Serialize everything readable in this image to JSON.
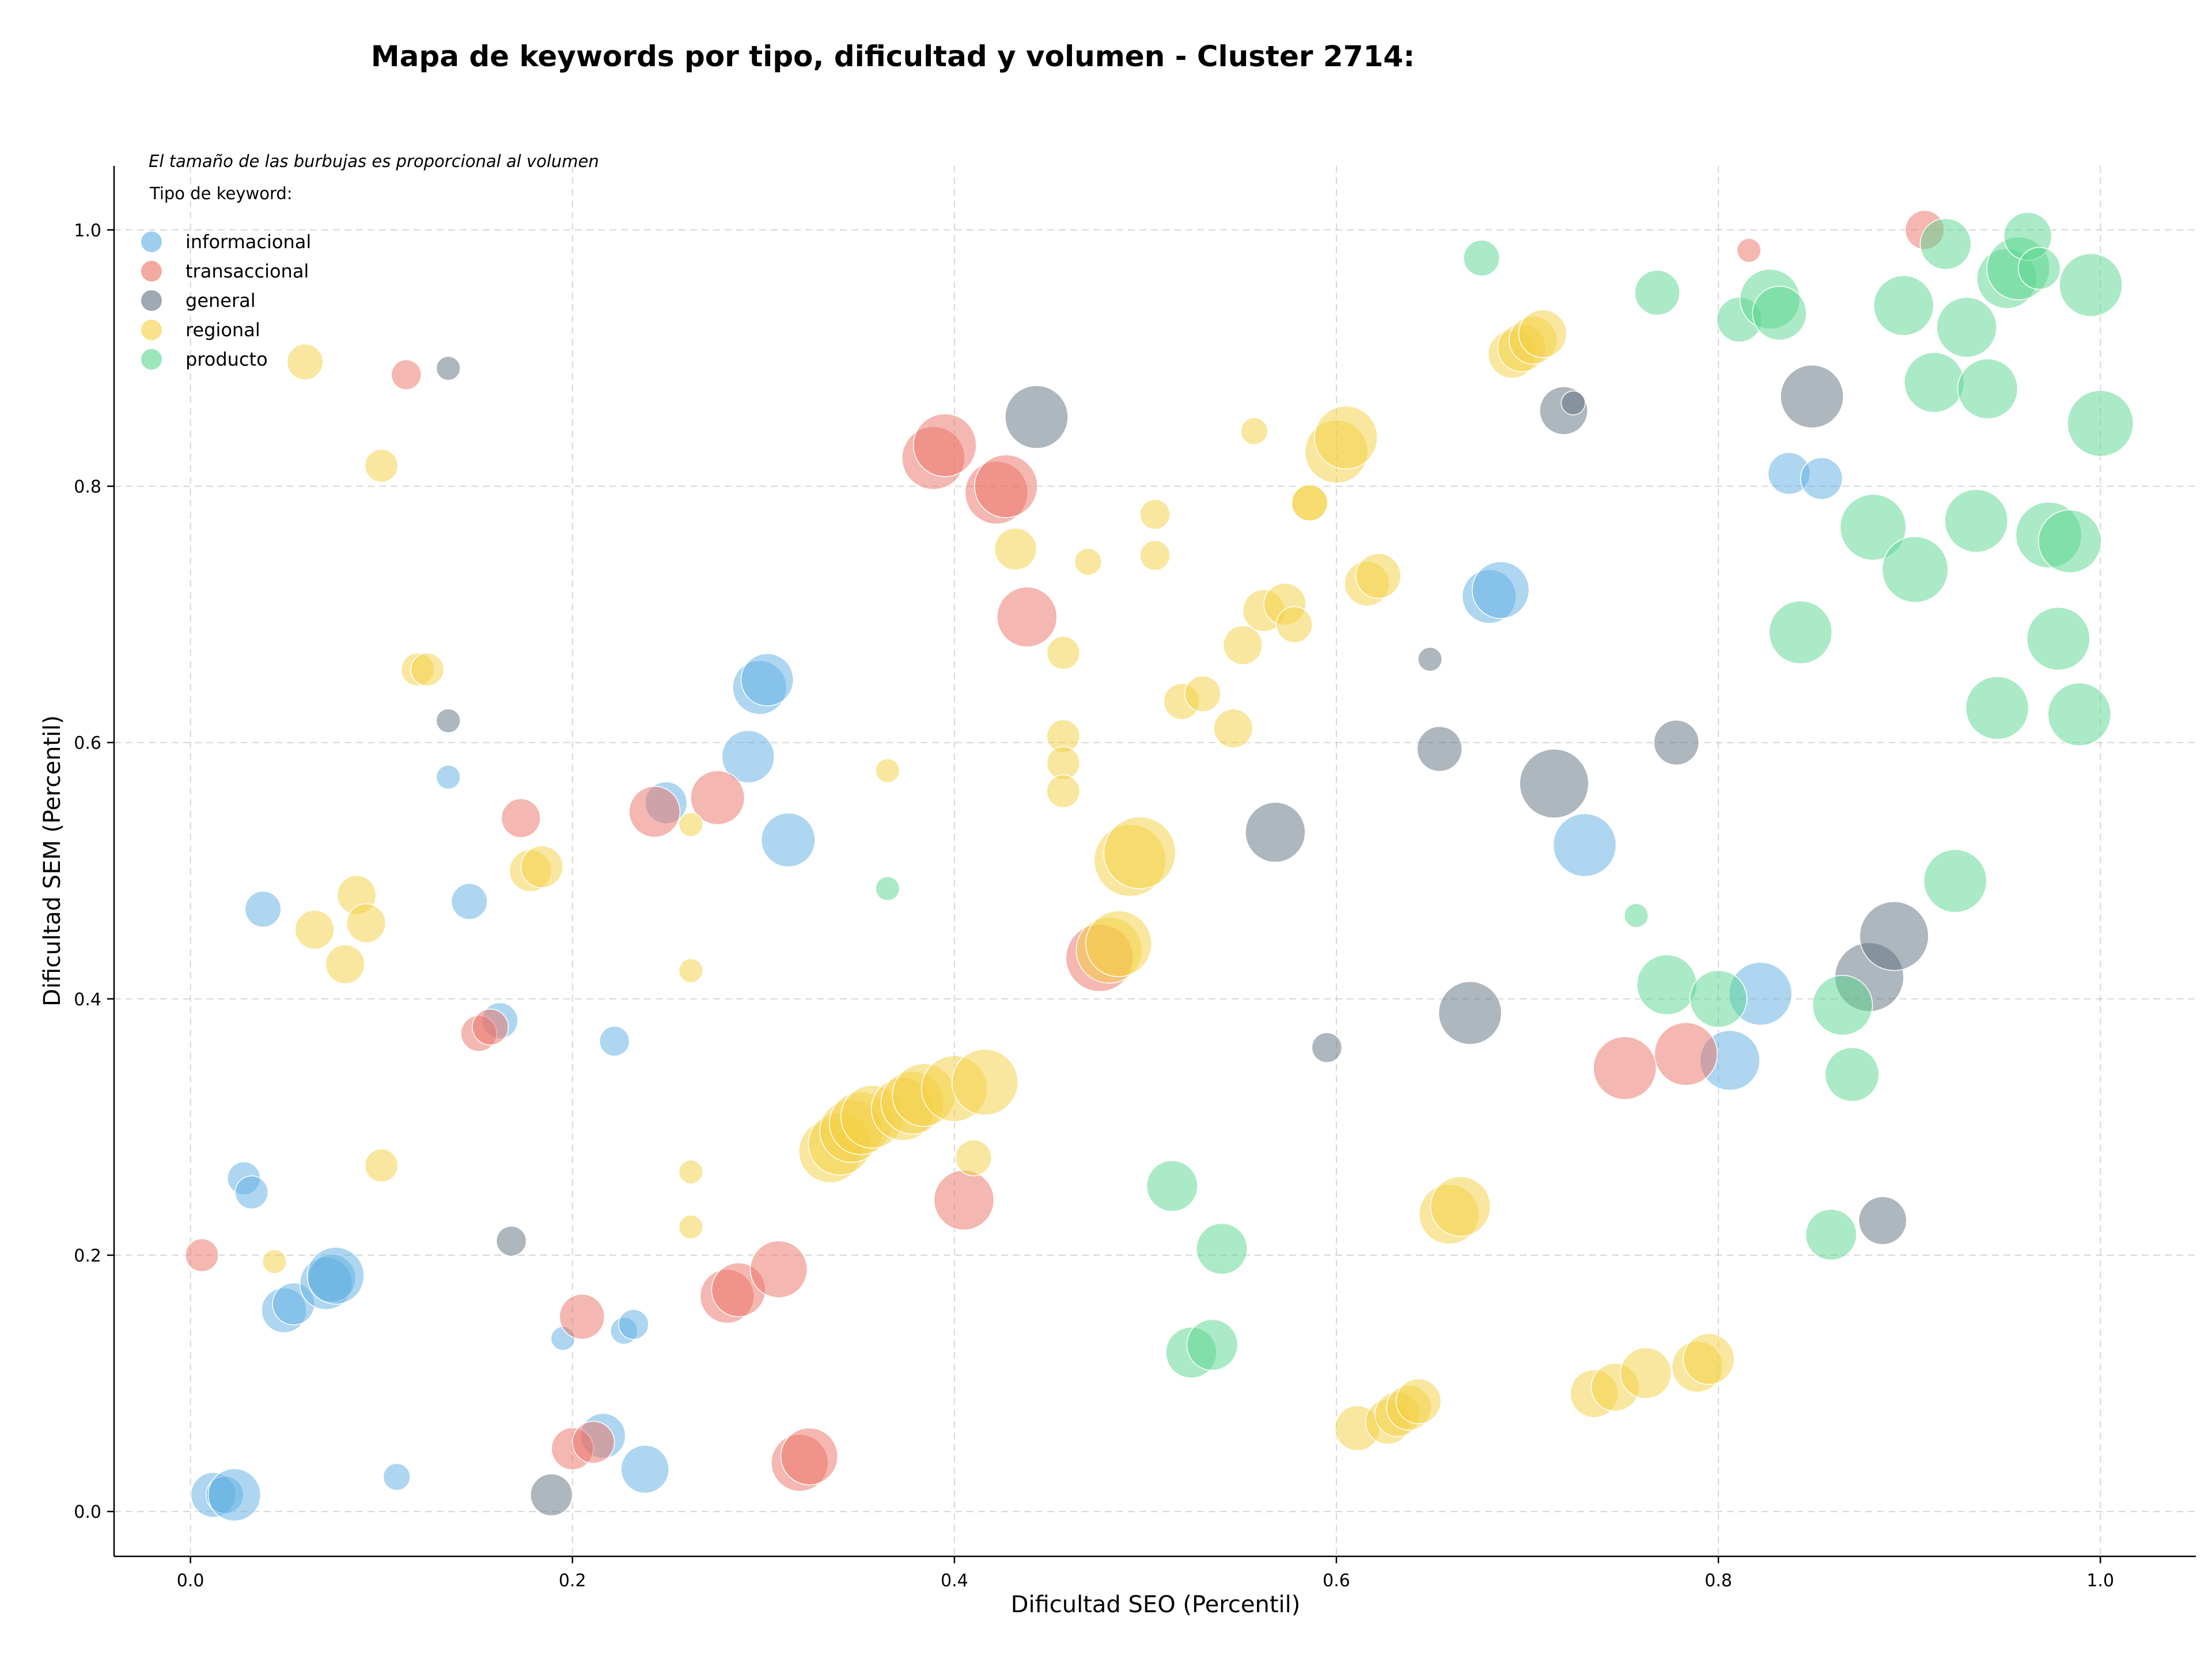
{
  "chart_data": {
    "type": "scatter",
    "title": "Mapa de keywords por tipo, dificultad y volumen - Cluster 2714:",
    "xlabel": "Dificultad SEO (Percentil)",
    "ylabel": "Dificultad SEM (Percentil)",
    "xlim": [
      -0.04,
      1.05
    ],
    "ylim": [
      -0.035,
      1.05
    ],
    "xticks": [
      "0.0",
      "0.2",
      "0.4",
      "0.6",
      "0.8",
      "1.0"
    ],
    "yticks": [
      "0.0",
      "0.2",
      "0.4",
      "0.6",
      "0.8",
      "1.0"
    ],
    "xtick_values": [
      0,
      0.2,
      0.4,
      0.6,
      0.8,
      1.0
    ],
    "ytick_values": [
      0,
      0.2,
      0.4,
      0.6,
      0.8,
      1.0
    ],
    "grid": true,
    "legend_position": "top-left",
    "size_note": "El tamaño de las burbujas es proporcional al volumen",
    "legend_title": "Tipo de keyword:",
    "size_encoding": "point third value = relative volume",
    "series": [
      {
        "name": "informacional",
        "color": "#5dade2",
        "points": [
          [
            0.012,
            0.013,
            30
          ],
          [
            0.018,
            0.013,
            25
          ],
          [
            0.023,
            0.013,
            35
          ],
          [
            0.028,
            0.26,
            22
          ],
          [
            0.032,
            0.249,
            22
          ],
          [
            0.038,
            0.47,
            24
          ],
          [
            0.049,
            0.157,
            30
          ],
          [
            0.054,
            0.162,
            28
          ],
          [
            0.071,
            0.178,
            35
          ],
          [
            0.074,
            0.182,
            32
          ],
          [
            0.076,
            0.184,
            38
          ],
          [
            0.108,
            0.027,
            18
          ],
          [
            0.135,
            0.573,
            16
          ],
          [
            0.146,
            0.476,
            24
          ],
          [
            0.162,
            0.383,
            24
          ],
          [
            0.195,
            0.135,
            16
          ],
          [
            0.216,
            0.059,
            30
          ],
          [
            0.222,
            0.367,
            20
          ],
          [
            0.227,
            0.141,
            18
          ],
          [
            0.232,
            0.146,
            20
          ],
          [
            0.238,
            0.033,
            32
          ],
          [
            0.249,
            0.553,
            28
          ],
          [
            0.292,
            0.589,
            35
          ],
          [
            0.298,
            0.643,
            36
          ],
          [
            0.302,
            0.649,
            35
          ],
          [
            0.313,
            0.524,
            36
          ],
          [
            0.68,
            0.714,
            36
          ],
          [
            0.686,
            0.719,
            38
          ],
          [
            0.73,
            0.52,
            42
          ],
          [
            0.806,
            0.352,
            40
          ],
          [
            0.822,
            0.404,
            42
          ],
          [
            0.837,
            0.81,
            28
          ],
          [
            0.854,
            0.806,
            28
          ]
        ]
      },
      {
        "name": "transaccional",
        "color": "#ec7063",
        "points": [
          [
            0.006,
            0.2,
            22
          ],
          [
            0.113,
            0.887,
            20
          ],
          [
            0.151,
            0.373,
            24
          ],
          [
            0.157,
            0.378,
            24
          ],
          [
            0.173,
            0.541,
            26
          ],
          [
            0.2,
            0.049,
            28
          ],
          [
            0.205,
            0.152,
            30
          ],
          [
            0.211,
            0.054,
            28
          ],
          [
            0.243,
            0.546,
            34
          ],
          [
            0.276,
            0.557,
            36
          ],
          [
            0.281,
            0.168,
            36
          ],
          [
            0.287,
            0.173,
            36
          ],
          [
            0.308,
            0.189,
            38
          ],
          [
            0.319,
            0.038,
            38
          ],
          [
            0.324,
            0.043,
            38
          ],
          [
            0.389,
            0.822,
            42
          ],
          [
            0.395,
            0.832,
            42
          ],
          [
            0.405,
            0.243,
            40
          ],
          [
            0.422,
            0.795,
            42
          ],
          [
            0.427,
            0.8,
            42
          ],
          [
            0.438,
            0.698,
            40
          ],
          [
            0.476,
            0.432,
            45
          ],
          [
            0.751,
            0.346,
            42
          ],
          [
            0.783,
            0.357,
            42
          ],
          [
            0.908,
            1.0,
            26
          ],
          [
            0.816,
            0.984,
            16
          ]
        ]
      },
      {
        "name": "general",
        "color": "#5d6d7e",
        "points": [
          [
            0.135,
            0.892,
            16
          ],
          [
            0.135,
            0.617,
            16
          ],
          [
            0.168,
            0.211,
            20
          ],
          [
            0.189,
            0.013,
            28
          ],
          [
            0.443,
            0.854,
            42
          ],
          [
            0.568,
            0.53,
            40
          ],
          [
            0.595,
            0.362,
            20
          ],
          [
            0.649,
            0.665,
            16
          ],
          [
            0.654,
            0.595,
            30
          ],
          [
            0.67,
            0.389,
            42
          ],
          [
            0.714,
            0.568,
            46
          ],
          [
            0.719,
            0.859,
            32
          ],
          [
            0.724,
            0.865,
            16
          ],
          [
            0.778,
            0.6,
            30
          ],
          [
            0.849,
            0.87,
            42
          ],
          [
            0.879,
            0.417,
            46
          ],
          [
            0.886,
            0.227,
            32
          ],
          [
            0.892,
            0.449,
            46
          ]
        ]
      },
      {
        "name": "regional",
        "color": "#f4d03f",
        "points": [
          [
            0.06,
            0.897,
            24
          ],
          [
            0.044,
            0.195,
            16
          ],
          [
            0.065,
            0.454,
            26
          ],
          [
            0.081,
            0.427,
            26
          ],
          [
            0.087,
            0.481,
            26
          ],
          [
            0.092,
            0.459,
            26
          ],
          [
            0.1,
            0.816,
            22
          ],
          [
            0.1,
            0.27,
            22
          ],
          [
            0.119,
            0.657,
            22
          ],
          [
            0.124,
            0.657,
            22
          ],
          [
            0.178,
            0.5,
            28
          ],
          [
            0.184,
            0.503,
            28
          ],
          [
            0.262,
            0.536,
            16
          ],
          [
            0.262,
            0.422,
            16
          ],
          [
            0.262,
            0.265,
            16
          ],
          [
            0.262,
            0.222,
            16
          ],
          [
            0.335,
            0.281,
            42
          ],
          [
            0.34,
            0.287,
            42
          ],
          [
            0.346,
            0.297,
            42
          ],
          [
            0.351,
            0.303,
            42
          ],
          [
            0.357,
            0.308,
            42
          ],
          [
            0.365,
            0.578,
            16
          ],
          [
            0.373,
            0.314,
            42
          ],
          [
            0.378,
            0.319,
            42
          ],
          [
            0.384,
            0.325,
            42
          ],
          [
            0.4,
            0.33,
            44
          ],
          [
            0.416,
            0.335,
            44
          ],
          [
            0.41,
            0.276,
            24
          ],
          [
            0.432,
            0.751,
            28
          ],
          [
            0.457,
            0.67,
            22
          ],
          [
            0.457,
            0.605,
            22
          ],
          [
            0.457,
            0.584,
            22
          ],
          [
            0.457,
            0.562,
            22
          ],
          [
            0.47,
            0.741,
            18
          ],
          [
            0.481,
            0.438,
            44
          ],
          [
            0.486,
            0.443,
            44
          ],
          [
            0.492,
            0.508,
            48
          ],
          [
            0.497,
            0.514,
            48
          ],
          [
            0.505,
            0.778,
            20
          ],
          [
            0.505,
            0.746,
            20
          ],
          [
            0.519,
            0.632,
            24
          ],
          [
            0.53,
            0.638,
            24
          ],
          [
            0.546,
            0.611,
            26
          ],
          [
            0.551,
            0.676,
            26
          ],
          [
            0.557,
            0.843,
            18
          ],
          [
            0.562,
            0.703,
            28
          ],
          [
            0.573,
            0.708,
            28
          ],
          [
            0.578,
            0.692,
            24
          ],
          [
            0.586,
            0.787,
            24
          ],
          [
            0.586,
            0.787,
            24
          ],
          [
            0.6,
            0.827,
            42
          ],
          [
            0.605,
            0.838,
            42
          ],
          [
            0.611,
            0.065,
            30
          ],
          [
            0.616,
            0.724,
            30
          ],
          [
            0.622,
            0.73,
            30
          ],
          [
            0.627,
            0.07,
            30
          ],
          [
            0.632,
            0.076,
            30
          ],
          [
            0.638,
            0.081,
            30
          ],
          [
            0.643,
            0.086,
            30
          ],
          [
            0.659,
            0.232,
            40
          ],
          [
            0.665,
            0.238,
            40
          ],
          [
            0.692,
            0.903,
            32
          ],
          [
            0.697,
            0.908,
            32
          ],
          [
            0.703,
            0.914,
            32
          ],
          [
            0.708,
            0.919,
            32
          ],
          [
            0.735,
            0.092,
            32
          ],
          [
            0.746,
            0.097,
            32
          ],
          [
            0.762,
            0.108,
            34
          ],
          [
            0.789,
            0.113,
            34
          ],
          [
            0.795,
            0.119,
            34
          ]
        ]
      },
      {
        "name": "producto",
        "color": "#58d68d",
        "points": [
          [
            0.365,
            0.486,
            16
          ],
          [
            0.514,
            0.254,
            34
          ],
          [
            0.524,
            0.124,
            34
          ],
          [
            0.535,
            0.13,
            34
          ],
          [
            0.54,
            0.205,
            34
          ],
          [
            0.676,
            0.978,
            24
          ],
          [
            0.757,
            0.465,
            16
          ],
          [
            0.768,
            0.951,
            30
          ],
          [
            0.773,
            0.411,
            40
          ],
          [
            0.8,
            0.4,
            38
          ],
          [
            0.811,
            0.93,
            30
          ],
          [
            0.827,
            0.946,
            40
          ],
          [
            0.832,
            0.935,
            36
          ],
          [
            0.843,
            0.686,
            42
          ],
          [
            0.859,
            0.216,
            34
          ],
          [
            0.865,
            0.395,
            40
          ],
          [
            0.87,
            0.341,
            36
          ],
          [
            0.881,
            0.768,
            44
          ],
          [
            0.897,
            0.941,
            40
          ],
          [
            0.903,
            0.735,
            44
          ],
          [
            0.913,
            0.881,
            40
          ],
          [
            0.919,
            0.989,
            34
          ],
          [
            0.924,
            0.492,
            42
          ],
          [
            0.93,
            0.924,
            40
          ],
          [
            0.935,
            0.773,
            42
          ],
          [
            0.941,
            0.876,
            40
          ],
          [
            0.946,
            0.627,
            42
          ],
          [
            0.951,
            0.962,
            40
          ],
          [
            0.957,
            0.97,
            42
          ],
          [
            0.962,
            0.995,
            32
          ],
          [
            0.968,
            0.97,
            28
          ],
          [
            0.973,
            0.762,
            44
          ],
          [
            0.978,
            0.681,
            42
          ],
          [
            0.984,
            0.757,
            42
          ],
          [
            0.989,
            0.622,
            42
          ],
          [
            0.995,
            0.957,
            42
          ],
          [
            1.0,
            0.849,
            44
          ]
        ]
      }
    ]
  }
}
